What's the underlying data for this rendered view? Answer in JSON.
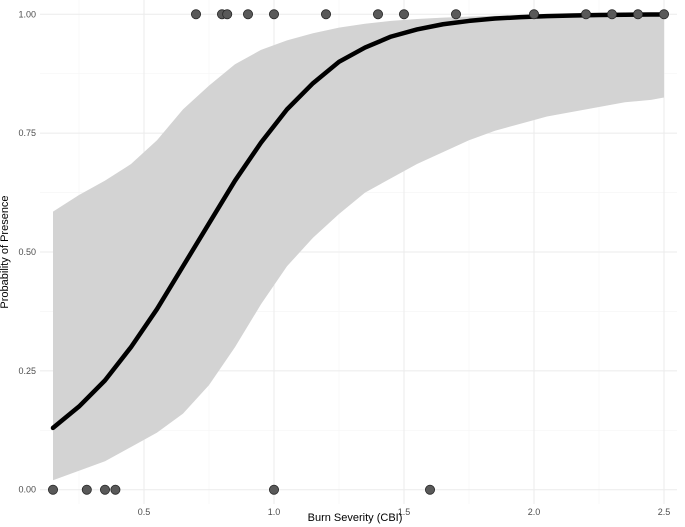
{
  "chart_data": {
    "type": "line",
    "title": "",
    "xlabel": "Burn Severity (CBI)",
    "ylabel": "Probability of Presence",
    "xlim": [
      0.1,
      2.55
    ],
    "ylim": [
      -0.03,
      1.03
    ],
    "x_ticks": [
      0.5,
      1.0,
      1.5,
      2.0,
      2.5
    ],
    "x_tick_labels": [
      "0.5",
      "1.0",
      "1.5",
      "2.0",
      "2.5"
    ],
    "y_ticks": [
      0.0,
      0.25,
      0.5,
      0.75,
      1.0
    ],
    "y_tick_labels": [
      "0.00",
      "0.25",
      "0.50",
      "0.75",
      "1.00"
    ],
    "grid": true,
    "colors": {
      "fit_line": "#000000",
      "ribbon": "#d3d3d3",
      "points": "#595959",
      "point_stroke": "#262626",
      "grid_major": "#ebebeb",
      "grid_minor": "#f5f5f5"
    },
    "fitted_curve": {
      "x": [
        0.15,
        0.25,
        0.35,
        0.45,
        0.55,
        0.65,
        0.75,
        0.85,
        0.95,
        1.05,
        1.15,
        1.25,
        1.35,
        1.45,
        1.55,
        1.65,
        1.75,
        1.85,
        1.95,
        2.05,
        2.15,
        2.25,
        2.35,
        2.45,
        2.5
      ],
      "y": [
        0.13,
        0.175,
        0.23,
        0.3,
        0.38,
        0.47,
        0.56,
        0.65,
        0.73,
        0.8,
        0.855,
        0.9,
        0.93,
        0.953,
        0.968,
        0.979,
        0.986,
        0.991,
        0.994,
        0.996,
        0.9975,
        0.9984,
        0.999,
        0.9994,
        0.9995
      ]
    },
    "confidence_band": {
      "x": [
        0.15,
        0.25,
        0.35,
        0.45,
        0.55,
        0.65,
        0.75,
        0.85,
        0.95,
        1.05,
        1.15,
        1.25,
        1.35,
        1.45,
        1.55,
        1.65,
        1.75,
        1.85,
        1.95,
        2.05,
        2.15,
        2.25,
        2.35,
        2.45,
        2.5
      ],
      "lower": [
        0.02,
        0.04,
        0.06,
        0.09,
        0.12,
        0.16,
        0.22,
        0.3,
        0.39,
        0.47,
        0.53,
        0.58,
        0.625,
        0.655,
        0.685,
        0.71,
        0.735,
        0.755,
        0.77,
        0.785,
        0.795,
        0.805,
        0.815,
        0.82,
        0.825
      ],
      "upper": [
        0.585,
        0.62,
        0.65,
        0.685,
        0.735,
        0.8,
        0.85,
        0.895,
        0.925,
        0.945,
        0.96,
        0.972,
        0.98,
        0.986,
        0.99,
        0.993,
        0.995,
        0.997,
        0.998,
        0.999,
        0.999,
        0.9995,
        0.9997,
        0.9998,
        0.9999
      ]
    },
    "points": [
      {
        "x": 0.15,
        "y": 0
      },
      {
        "x": 0.28,
        "y": 0
      },
      {
        "x": 0.35,
        "y": 0
      },
      {
        "x": 0.39,
        "y": 0
      },
      {
        "x": 1.0,
        "y": 0
      },
      {
        "x": 1.6,
        "y": 0
      },
      {
        "x": 0.7,
        "y": 1
      },
      {
        "x": 0.8,
        "y": 1
      },
      {
        "x": 0.82,
        "y": 1
      },
      {
        "x": 0.9,
        "y": 1
      },
      {
        "x": 1.0,
        "y": 1
      },
      {
        "x": 1.2,
        "y": 1
      },
      {
        "x": 1.4,
        "y": 1
      },
      {
        "x": 1.5,
        "y": 1
      },
      {
        "x": 1.7,
        "y": 1
      },
      {
        "x": 2.0,
        "y": 1
      },
      {
        "x": 2.2,
        "y": 1
      },
      {
        "x": 2.3,
        "y": 1
      },
      {
        "x": 2.4,
        "y": 1
      },
      {
        "x": 2.5,
        "y": 1
      }
    ]
  }
}
